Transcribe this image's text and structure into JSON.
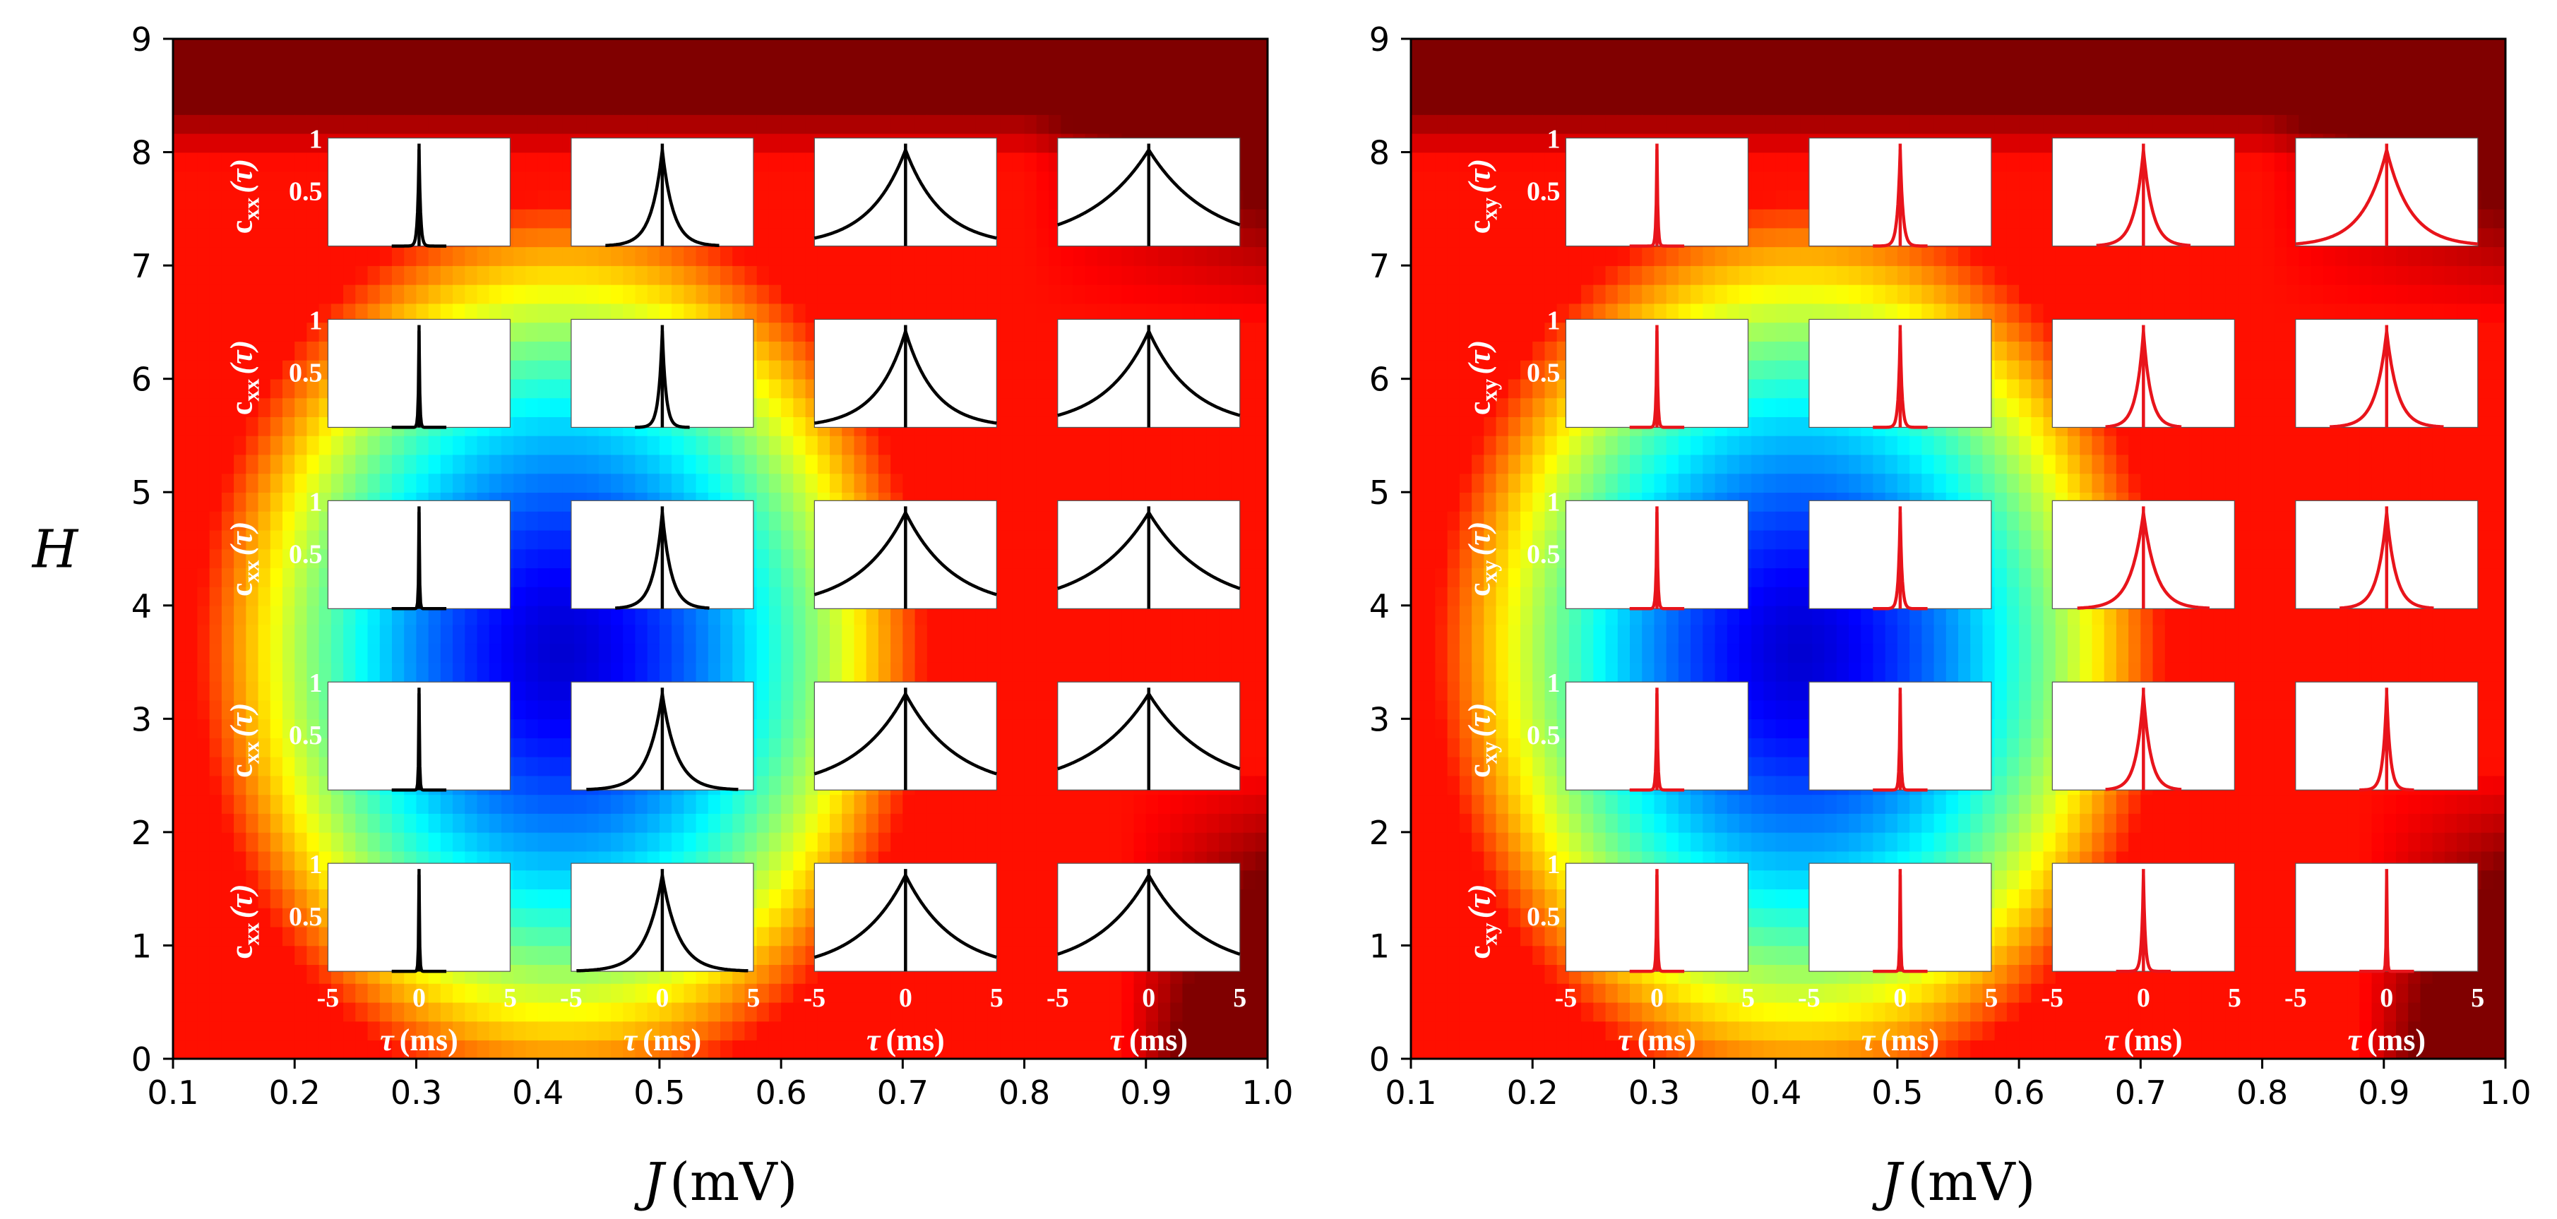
{
  "chart_data": [
    {
      "type": "heatmap",
      "panel": "left",
      "xlabel_var": "J",
      "xlabel_unit": "(mV)",
      "ylabel": "H",
      "xlim": [
        0.1,
        1.0
      ],
      "ylim": [
        0,
        9
      ],
      "x_ticks": [
        "0.1",
        "0.2",
        "0.3",
        "0.4",
        "0.5",
        "0.6",
        "0.7",
        "0.8",
        "0.9",
        "1.0"
      ],
      "y_ticks": [
        "0",
        "1",
        "2",
        "3",
        "4",
        "5",
        "6",
        "7",
        "8",
        "9"
      ],
      "colormap": "jet",
      "inset_rows": [
        8,
        6.4,
        4.8,
        3.2,
        1.6
      ],
      "inset_cols": [
        0.3,
        0.5,
        0.7,
        0.9
      ],
      "inset_ylabel_main": "c",
      "inset_ylabel_sub": "xx",
      "inset_ylabel_arg": "(τ)",
      "inset_y_ticks": [
        "1",
        "0.5"
      ],
      "inset_x_ticks": [
        "-5",
        "0",
        "5"
      ],
      "inset_xlabel_var": "τ",
      "inset_xlabel_unit": "(ms)",
      "curve_color": "#000000",
      "inset_widths": [
        [
          0.08,
          0.6,
          2.0,
          3.3
        ],
        [
          0.04,
          0.2,
          1.6,
          2.4
        ],
        [
          0.03,
          0.5,
          2.6,
          3.2
        ],
        [
          0.03,
          0.8,
          2.8,
          3.3
        ],
        [
          0.03,
          0.9,
          2.6,
          2.9
        ]
      ]
    },
    {
      "type": "heatmap",
      "panel": "right",
      "xlabel_var": "J",
      "xlabel_unit": "(mV)",
      "ylabel": "",
      "xlim": [
        0.1,
        1.0
      ],
      "ylim": [
        0,
        9
      ],
      "x_ticks": [
        "0.1",
        "0.2",
        "0.3",
        "0.4",
        "0.5",
        "0.6",
        "0.7",
        "0.8",
        "0.9",
        "1.0"
      ],
      "y_ticks": [
        "0",
        "1",
        "2",
        "3",
        "4",
        "5",
        "6",
        "7",
        "8",
        "9"
      ],
      "colormap": "jet",
      "inset_rows": [
        8,
        6.4,
        4.8,
        3.2,
        1.6
      ],
      "inset_cols": [
        0.3,
        0.5,
        0.7,
        0.9
      ],
      "inset_ylabel_main": "c",
      "inset_ylabel_sub": "xy",
      "inset_ylabel_arg": "(τ)",
      "inset_y_ticks": [
        "1",
        "0.5"
      ],
      "inset_x_ticks": [
        "-5",
        "0",
        "5"
      ],
      "inset_xlabel_var": "τ",
      "inset_xlabel_unit": "(ms)",
      "curve_color": "#e8141b",
      "inset_widths": [
        [
          0.05,
          0.15,
          0.5,
          1.3
        ],
        [
          0.05,
          0.1,
          0.4,
          0.6
        ],
        [
          0.05,
          0.1,
          0.7,
          0.5
        ],
        [
          0.05,
          0.05,
          0.4,
          0.2
        ],
        [
          0.04,
          0.03,
          0.1,
          0.03
        ]
      ]
    }
  ]
}
